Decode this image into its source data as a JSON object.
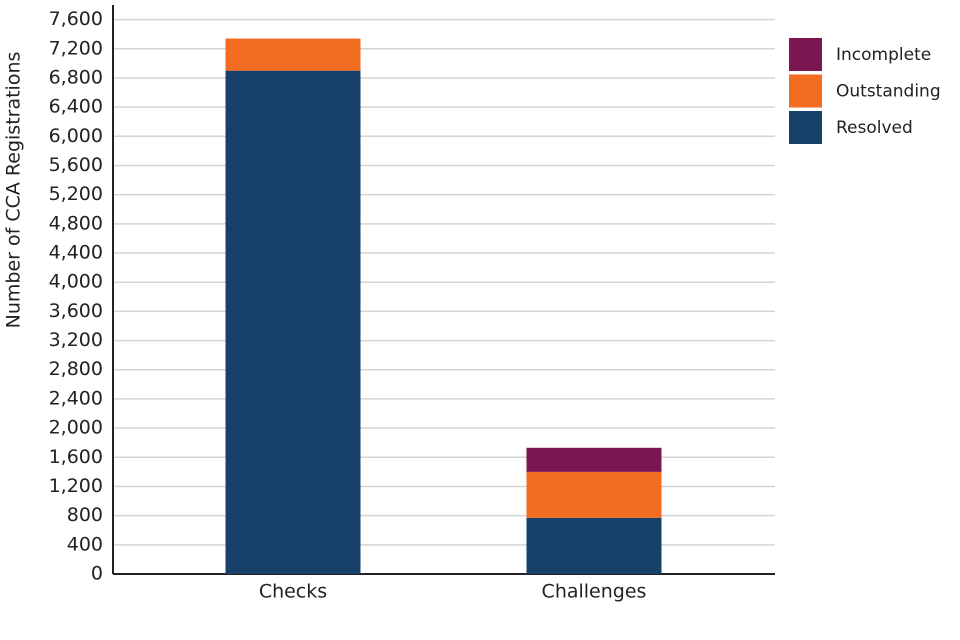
{
  "chart_data": {
    "type": "stacked-bar",
    "y_label": "Number of CCA Registrations",
    "categories": [
      "Checks",
      "Challenges"
    ],
    "series": [
      {
        "name": "Resolved",
        "color": "#17416b",
        "values": [
          6900,
          770
        ]
      },
      {
        "name": "Outstanding",
        "color": "#f26c22",
        "values": [
          440,
          630
        ]
      },
      {
        "name": "Incomplete",
        "color": "#7b1650",
        "values": [
          0,
          330
        ]
      }
    ],
    "ylim": [
      0,
      7800
    ],
    "yticks": [
      0,
      400,
      800,
      {
        "value": 1200,
        "label": "1,200"
      },
      {
        "value": 1600,
        "label": "1,600"
      },
      {
        "value": 2000,
        "label": "2,000"
      },
      {
        "value": 2400,
        "label": "2,400"
      },
      {
        "value": 2800,
        "label": "2,800"
      },
      {
        "value": 3200,
        "label": "3,200"
      },
      {
        "value": 3600,
        "label": "3,600"
      },
      {
        "value": 4000,
        "label": "4,000"
      },
      {
        "value": 4400,
        "label": "4,400"
      },
      {
        "value": 4800,
        "label": "4,800"
      },
      {
        "value": 5200,
        "label": "5,200"
      },
      {
        "value": 5600,
        "label": "5,600"
      },
      {
        "value": 6000,
        "label": "6,000"
      },
      {
        "value": 6400,
        "label": "6,400"
      },
      {
        "value": 6800,
        "label": "6,800"
      },
      {
        "value": 7200,
        "label": "7,200"
      },
      {
        "value": 7600,
        "label": "7,600"
      }
    ],
    "grid": true,
    "legend": "right"
  }
}
